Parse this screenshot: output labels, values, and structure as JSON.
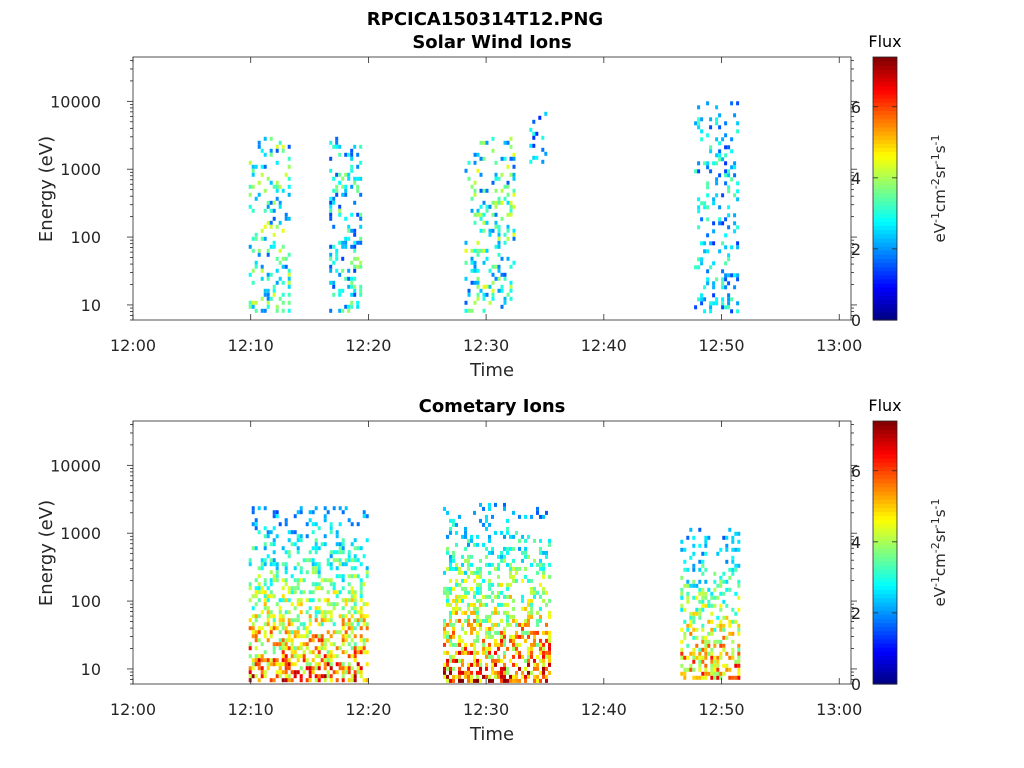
{
  "figure_title": "RPCICA150314T12.PNG",
  "chart_data": [
    {
      "type": "heatmap",
      "title": "Solar Wind Ions",
      "xlabel": "Time",
      "ylabel": "Energy (eV)",
      "x_scale": "time",
      "x_range": [
        "12:00",
        "13:01"
      ],
      "x_ticks": [
        "12:00",
        "12:10",
        "12:20",
        "12:30",
        "12:40",
        "12:50",
        "13:00"
      ],
      "y_scale": "log",
      "y_range": [
        6,
        45000
      ],
      "y_ticks": [
        "10",
        "100",
        "1000",
        "10000"
      ],
      "colorbar": {
        "title": "Flux",
        "label": "eV-1cm-2sr-1s-1",
        "range": [
          0,
          7.4
        ],
        "ticks": [
          "0",
          "2",
          "4",
          "6"
        ],
        "colormap": "jet"
      },
      "clusters": [
        {
          "t_start": "12:09:50",
          "t_end": "12:13:10",
          "e_min": 8,
          "e_max": 3000,
          "flux_peak": 4.5,
          "density": 0.35
        },
        {
          "t_start": "12:16:40",
          "t_end": "12:19:20",
          "e_min": 8,
          "e_max": 3000,
          "flux_peak": 4.0,
          "density": 0.35
        },
        {
          "t_start": "12:28:10",
          "t_end": "12:32:20",
          "e_min": 8,
          "e_max": 3000,
          "flux_peak": 4.5,
          "density": 0.33
        },
        {
          "t_start": "12:33:40",
          "t_end": "12:35:00",
          "e_min": 1000,
          "e_max": 7000,
          "flux_peak": 3.0,
          "density": 0.25
        },
        {
          "t_start": "12:47:40",
          "t_end": "12:51:20",
          "e_min": 8,
          "e_max": 10000,
          "flux_peak": 3.5,
          "density": 0.3
        }
      ]
    },
    {
      "type": "heatmap",
      "title": "Cometary Ions",
      "xlabel": "Time",
      "ylabel": "Energy (eV)",
      "x_scale": "time",
      "x_range": [
        "12:00",
        "13:01"
      ],
      "x_ticks": [
        "12:00",
        "12:10",
        "12:20",
        "12:30",
        "12:40",
        "12:50",
        "13:00"
      ],
      "y_scale": "log",
      "y_range": [
        6,
        45000
      ],
      "y_ticks": [
        "10",
        "100",
        "1000",
        "10000"
      ],
      "colorbar": {
        "title": "Flux",
        "label": "eV-1cm-2sr-1s-1",
        "range": [
          0,
          7.4
        ],
        "ticks": [
          "0",
          "2",
          "4",
          "6"
        ],
        "colormap": "jet"
      },
      "clusters": [
        {
          "t_start": "12:09:50",
          "t_end": "12:20:00",
          "e_min": 7,
          "e_max": 2500,
          "flux_peak": 7.0,
          "density": 0.55
        },
        {
          "t_start": "12:26:20",
          "t_end": "12:35:30",
          "e_min": 7,
          "e_max": 2800,
          "flux_peak": 7.2,
          "density": 0.55
        },
        {
          "t_start": "12:46:30",
          "t_end": "12:51:30",
          "e_min": 7,
          "e_max": 1200,
          "flux_peak": 6.8,
          "density": 0.5
        }
      ]
    }
  ]
}
